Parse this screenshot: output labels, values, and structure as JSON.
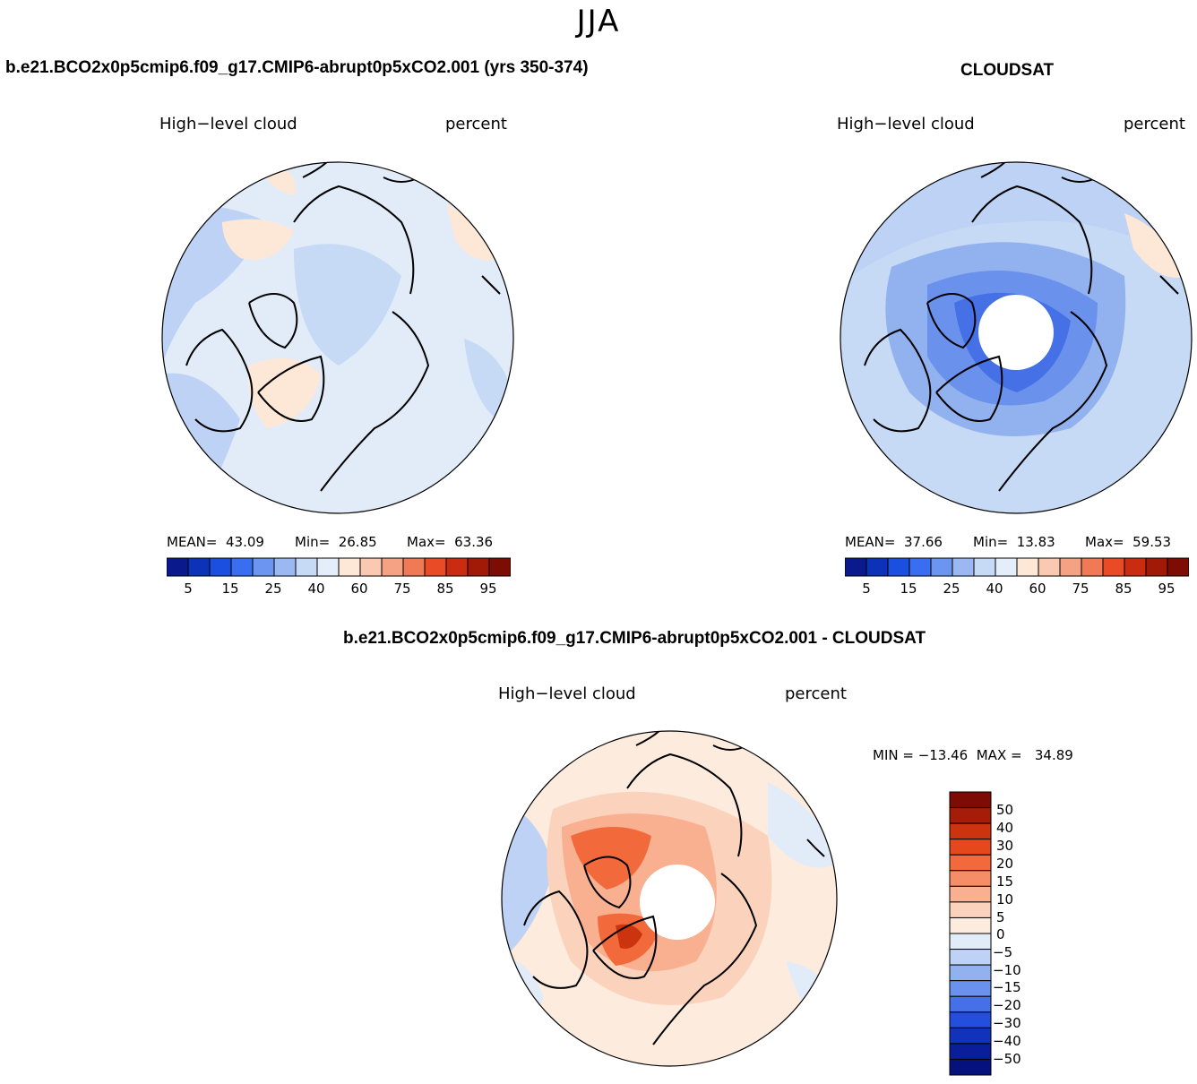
{
  "page": {
    "title": "JJA"
  },
  "panel1": {
    "case_title": "b.e21.BCO2x0p5cmip6.f09_g17.CMIP6-abrupt0p5xCO2.001 (yrs 350-374)",
    "left_label": "High−level cloud",
    "right_label": "percent",
    "mean_text": "MEAN=  43.09",
    "min_text": "Min=  26.85",
    "max_text": "Max=  63.36"
  },
  "panel2": {
    "case_title": "CLOUDSAT",
    "left_label": "High−level cloud",
    "right_label": "percent",
    "mean_text": "MEAN=  37.66",
    "min_text": "Min=  13.83",
    "max_text": "Max=  59.53"
  },
  "panel3": {
    "case_title": "b.e21.BCO2x0p5cmip6.f09_g17.CMIP6-abrupt0p5xCO2.001 - CLOUDSAT",
    "left_label": "High−level cloud",
    "right_label": "percent",
    "minmax_text": "MIN = −13.46  MAX =   34.89"
  },
  "colorbar_h": {
    "colors": [
      "#0a1a8c",
      "#0c32b8",
      "#1a4fe0",
      "#3a6ef0",
      "#6b95f0",
      "#9cb8f2",
      "#c6d9f5",
      "#e4eefa",
      "#fde8d8",
      "#f9c9b1",
      "#f5a284",
      "#f07a55",
      "#e84b25",
      "#c92c10",
      "#a11a08",
      "#7c0c04"
    ],
    "labels": [
      "5",
      "15",
      "25",
      "40",
      "60",
      "75",
      "85",
      "95"
    ]
  },
  "colorbar_v": {
    "colors": [
      "#7c0c04",
      "#a51c08",
      "#cc3410",
      "#e4481c",
      "#f26a3c",
      "#f58e66",
      "#f8b090",
      "#fbd3bd",
      "#fdebdd",
      "#e2ecf9",
      "#bdd2f4",
      "#92b2ef",
      "#6a92ec",
      "#4570e6",
      "#244fdc",
      "#1232bc",
      "#0a1e9a",
      "#05127e"
    ],
    "labels": [
      "50",
      "40",
      "30",
      "20",
      "15",
      "10",
      "5",
      "0",
      "−5",
      "−10",
      "−15",
      "−20",
      "−30",
      "−40",
      "−50"
    ]
  },
  "colors": {
    "land_line": "#000000",
    "map1_bg": "#d8e6f8",
    "map2_bg": "#bdd2f4",
    "map3_bg": "#fbd3bd"
  }
}
